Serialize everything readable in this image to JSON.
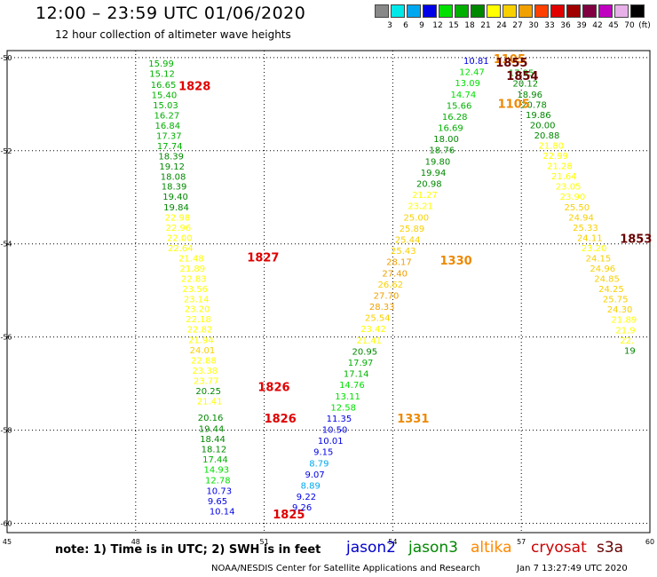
{
  "header": {
    "title": "12:00 – 23:59 UTC 01/06/2020",
    "subtitle": "12 hour collection of altimeter wave heights"
  },
  "legend": {
    "labels": [
      "3",
      "6",
      "9",
      "12",
      "15",
      "18",
      "21",
      "24",
      "27",
      "30",
      "33",
      "36",
      "39",
      "42",
      "45",
      "70"
    ],
    "unit": "(ft)",
    "colors": [
      "#888888",
      "#00e8e8",
      "#00a8f0",
      "#0000e8",
      "#00e000",
      "#00b000",
      "#008800",
      "#ffff00",
      "#f8d000",
      "#f0a000",
      "#ff4000",
      "#e00000",
      "#a00000",
      "#800040",
      "#c000c0",
      "#e8b0e8",
      "#000000"
    ]
  },
  "satellites": [
    {
      "name": "jason2",
      "color": "#0000cc"
    },
    {
      "name": "jason3",
      "color": "#008800"
    },
    {
      "name": "altika",
      "color": "#ff8800"
    },
    {
      "name": "cryosat",
      "color": "#cc0000"
    },
    {
      "name": "s3a",
      "color": "#660000"
    }
  ],
  "footer": {
    "note": "note: 1) Time is in UTC; 2) SWH is in feet",
    "credit": "NOAA/NESDIS Center for Satellite Applications and Research",
    "timestamp": "Jan  7 13:27:49 UTC 2020"
  },
  "chart_data": {
    "type": "scatter",
    "x_ticks": [
      "45",
      "48",
      "51",
      "54",
      "57",
      "60"
    ],
    "y_ticks": [
      "-50",
      "-52",
      "-54",
      "-56",
      "-58",
      "-60"
    ],
    "xlim": [
      45,
      60
    ],
    "ylim": [
      -60.2,
      -49.85
    ],
    "grid": true,
    "color_scale": "wave height (ft)",
    "passes": [
      {
        "label": "1828",
        "label_lon": 49.0,
        "label_lat": -50.6,
        "label_color": "#e00000",
        "points": [
          [
            48.3,
            -50.12,
            "15.99"
          ],
          [
            48.32,
            -50.34,
            "15.12"
          ],
          [
            48.35,
            -50.57,
            "16.65"
          ],
          [
            48.37,
            -50.79,
            "15.40"
          ],
          [
            48.4,
            -51.01,
            "15.03"
          ],
          [
            48.43,
            -51.23,
            "16.27"
          ],
          [
            48.45,
            -51.45,
            "16.84"
          ],
          [
            48.48,
            -51.67,
            "17.37"
          ],
          [
            48.5,
            -51.89,
            "17.74"
          ],
          [
            48.53,
            -52.11,
            "18.39"
          ],
          [
            48.55,
            -52.33,
            "19.12"
          ],
          [
            48.58,
            -52.55,
            "18.08"
          ],
          [
            48.6,
            -52.76,
            "18.39"
          ],
          [
            48.63,
            -52.98,
            "19.40"
          ],
          [
            48.65,
            -53.2,
            "19.84"
          ],
          [
            48.68,
            -53.42,
            "22.98"
          ],
          [
            48.7,
            -53.64,
            "22.96"
          ],
          [
            48.73,
            -53.86,
            "22.00"
          ],
          [
            48.75,
            -54.08,
            "22.64"
          ]
        ]
      },
      {
        "label": "1827",
        "label_lon": 50.6,
        "label_lat": -54.28,
        "label_color": "#e00000",
        "points": [
          [
            49.0,
            -54.3,
            "21.48"
          ],
          [
            49.03,
            -54.52,
            "21.89"
          ],
          [
            49.06,
            -54.74,
            "22.83"
          ],
          [
            49.09,
            -54.96,
            "23.56"
          ],
          [
            49.12,
            -55.18,
            "23.14"
          ],
          [
            49.14,
            -55.39,
            "23.20"
          ],
          [
            49.17,
            -55.61,
            "22.18"
          ],
          [
            49.2,
            -55.83,
            "22.82"
          ],
          [
            49.23,
            -56.05,
            "21.94"
          ],
          [
            49.26,
            -56.27,
            "24.01"
          ],
          [
            49.29,
            -56.49,
            "22.88"
          ],
          [
            49.32,
            -56.71,
            "23.38"
          ],
          [
            49.35,
            -56.93,
            "23.77"
          ]
        ]
      },
      {
        "label": "1826",
        "label_lon": 50.85,
        "label_lat": -57.06,
        "label_color": "#e00000",
        "points": [
          [
            49.4,
            -57.15,
            "20.25"
          ],
          [
            49.43,
            -57.37,
            "21.41"
          ]
        ]
      },
      {
        "label": "1826",
        "label_lon": 51.0,
        "label_lat": -57.74,
        "label_color": "#e00000",
        "points": [
          [
            49.45,
            -57.72,
            "20.16"
          ],
          [
            49.47,
            -57.96,
            "19.44"
          ],
          [
            49.5,
            -58.18,
            "18.44"
          ],
          [
            49.53,
            -58.4,
            "18.12"
          ],
          [
            49.56,
            -58.62,
            "17.44"
          ],
          [
            49.59,
            -58.84,
            "14.93"
          ],
          [
            49.62,
            -59.07,
            "12.78"
          ],
          [
            49.65,
            -59.29,
            "10.73"
          ],
          [
            49.68,
            -59.51,
            "9.65"
          ],
          [
            49.72,
            -59.73,
            "10.14"
          ]
        ]
      },
      {
        "label": "1825",
        "label_lon": 51.2,
        "label_lat": -59.8,
        "label_color": "#e00000",
        "points": []
      },
      {
        "label": "",
        "label_lon": 0,
        "label_lat": 0,
        "label_color": "#000000",
        "points": [
          [
            51.65,
            -59.65,
            "9.26"
          ],
          [
            51.75,
            -59.42,
            "9.22"
          ],
          [
            51.85,
            -59.18,
            "8.89"
          ],
          [
            51.95,
            -58.94,
            "9.07"
          ],
          [
            52.05,
            -58.7,
            "8.79"
          ],
          [
            52.15,
            -58.46,
            "9.15"
          ],
          [
            52.25,
            -58.22,
            "10.01"
          ],
          [
            52.35,
            -57.98,
            "10.50"
          ],
          [
            52.45,
            -57.74,
            "11.35"
          ]
        ]
      },
      {
        "label": "1331",
        "label_lon": 54.1,
        "label_lat": -57.74,
        "label_color": "#ee8800",
        "points": [
          [
            52.55,
            -57.5,
            "12.58"
          ],
          [
            52.65,
            -57.26,
            "13.11"
          ],
          [
            52.75,
            -57.02,
            "14.76"
          ],
          [
            52.85,
            -56.78,
            "17.14"
          ],
          [
            52.95,
            -56.54,
            "17.97"
          ],
          [
            53.05,
            -56.3,
            "20.95"
          ],
          [
            53.15,
            -56.06,
            "21.41"
          ],
          [
            53.25,
            -55.82,
            "23.42"
          ],
          [
            53.35,
            -55.58,
            "25.54"
          ],
          [
            53.45,
            -55.34,
            "28.33"
          ],
          [
            53.55,
            -55.1,
            "27.70"
          ],
          [
            53.65,
            -54.86,
            "26.62"
          ],
          [
            53.75,
            -54.62,
            "27.40"
          ],
          [
            53.85,
            -54.38,
            "28.17"
          ],
          [
            53.95,
            -54.14,
            "25.43"
          ]
        ]
      },
      {
        "label": "1330",
        "label_lon": 55.1,
        "label_lat": -54.35,
        "label_color": "#ee8800",
        "points": [
          [
            54.05,
            -53.9,
            "25.44"
          ],
          [
            54.15,
            -53.66,
            "25.89"
          ],
          [
            54.25,
            -53.42,
            "25.00"
          ],
          [
            54.35,
            -53.18,
            "23.21"
          ],
          [
            54.45,
            -52.94,
            "21.27"
          ],
          [
            54.55,
            -52.7,
            "20.98"
          ],
          [
            54.65,
            -52.46,
            "19.94"
          ],
          [
            54.75,
            -52.22,
            "19.80"
          ],
          [
            54.85,
            -51.98,
            "18.76"
          ],
          [
            54.95,
            -51.74,
            "18.00"
          ],
          [
            55.05,
            -51.5,
            "16.69"
          ],
          [
            55.15,
            -51.26,
            "16.28"
          ],
          [
            55.25,
            -51.02,
            "15.66"
          ],
          [
            55.35,
            -50.78,
            "14.74"
          ],
          [
            55.45,
            -50.54,
            "13.09"
          ],
          [
            55.55,
            -50.3,
            "12.47"
          ],
          [
            55.65,
            -50.06,
            "10.81"
          ]
        ]
      },
      {
        "label": "1105",
        "label_lon": 56.35,
        "label_lat": -50.02,
        "label_color": "#ee8800",
        "points": []
      },
      {
        "label": "1855",
        "label_lon": 56.4,
        "label_lat": -50.1,
        "label_color": "#660000",
        "points": [
          [
            56.7,
            -50.32,
            "17.95"
          ],
          [
            56.8,
            -50.55,
            "20.12"
          ],
          [
            56.9,
            -50.78,
            "18.96"
          ],
          [
            57.0,
            -51.0,
            "20.78"
          ]
        ]
      },
      {
        "label": "1854",
        "label_lon": 56.65,
        "label_lat": -50.38,
        "label_color": "#660000",
        "points": []
      },
      {
        "label": "1105",
        "label_lon": 56.45,
        "label_lat": -50.98,
        "label_color": "#ee8800",
        "points": []
      },
      {
        "label": "1853",
        "label_lon": 59.3,
        "label_lat": -53.88,
        "label_color": "#660000",
        "points": [
          [
            57.1,
            -51.22,
            "19.86"
          ],
          [
            57.2,
            -51.44,
            "20.00"
          ],
          [
            57.3,
            -51.66,
            "20.88"
          ],
          [
            57.4,
            -51.88,
            "21.80"
          ],
          [
            57.5,
            -52.1,
            "22.99"
          ],
          [
            57.6,
            -52.32,
            "21.28"
          ],
          [
            57.7,
            -52.54,
            "21.64"
          ],
          [
            57.8,
            -52.76,
            "23.05"
          ],
          [
            57.9,
            -52.98,
            "23.90"
          ],
          [
            58.0,
            -53.2,
            "25.50"
          ],
          [
            58.1,
            -53.42,
            "24.94"
          ],
          [
            58.2,
            -53.64,
            "25.33"
          ],
          [
            58.3,
            -53.86,
            "24.11"
          ],
          [
            58.4,
            -54.08,
            "23.20"
          ],
          [
            58.5,
            -54.3,
            "24.15"
          ],
          [
            58.6,
            -54.52,
            "24.96"
          ],
          [
            58.7,
            -54.74,
            "24.85"
          ],
          [
            58.8,
            -54.96,
            "24.25"
          ],
          [
            58.9,
            -55.18,
            "25.75"
          ],
          [
            59.0,
            -55.4,
            "24.30"
          ],
          [
            59.1,
            -55.62,
            "21.89"
          ],
          [
            59.2,
            -55.84,
            "21.9"
          ],
          [
            59.3,
            -56.06,
            "22."
          ],
          [
            59.4,
            -56.28,
            "19"
          ]
        ]
      }
    ]
  }
}
